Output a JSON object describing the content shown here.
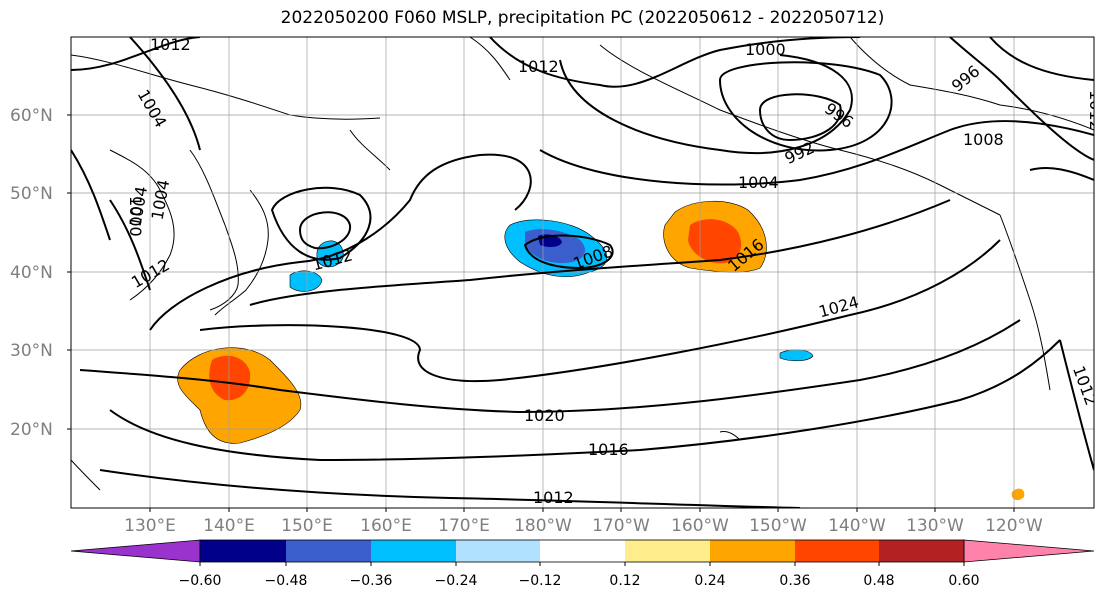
{
  "title": "2022050200 F060 MSLP, precipitation PC (2022050612 - 2022050712)",
  "lat_labels": [
    "60°N",
    "50°N",
    "40°N",
    "30°N",
    "20°N"
  ],
  "lon_labels": [
    "130°E",
    "140°E",
    "150°E",
    "160°E",
    "170°E",
    "180°W",
    "170°W",
    "160°W",
    "150°W",
    "140°W",
    "130°W",
    "120°W"
  ],
  "isobar_labels": [
    "1012",
    "1004",
    "1012",
    "1000",
    "996",
    "996",
    "992",
    "1008",
    "1004",
    "1000",
    "1004",
    "1004",
    "1012",
    "1012",
    "1008",
    "1016",
    "1024",
    "1020",
    "1016",
    "1012",
    "1012",
    "1012"
  ],
  "colorbar": {
    "ticks": [
      "−0.60",
      "−0.48",
      "−0.36",
      "−0.24",
      "−0.12",
      "0.12",
      "0.24",
      "0.36",
      "0.48",
      "0.60"
    ],
    "colors": [
      "#9a32cd",
      "#00008b",
      "#3a5fcd",
      "#00bfff",
      "#b0e2ff",
      "#ffffff",
      "#ffec8b",
      "#ffa500",
      "#ff4500",
      "#b22222",
      "#ff82ab"
    ]
  }
}
